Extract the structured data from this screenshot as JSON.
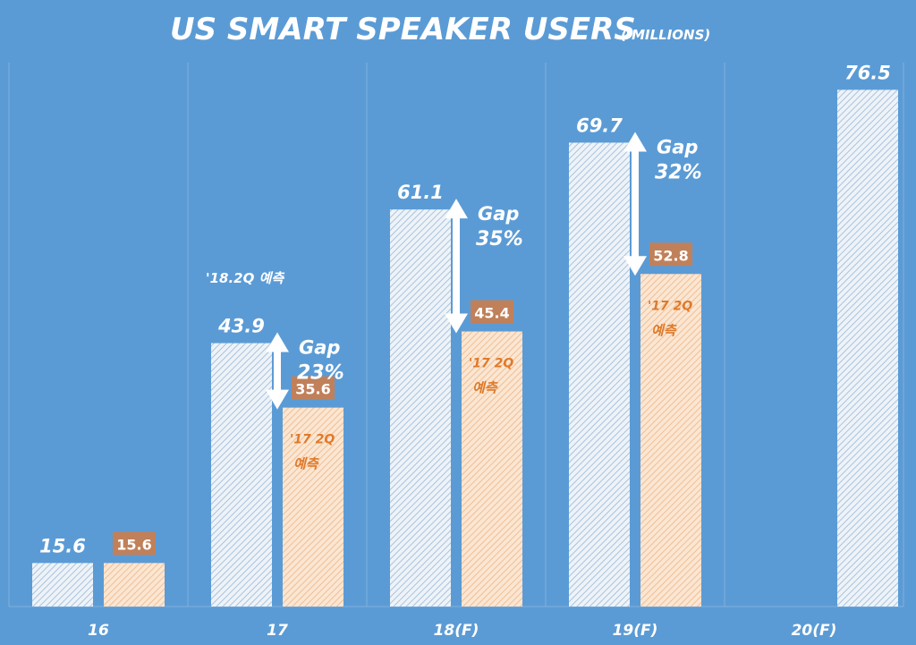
{
  "chart_data": {
    "type": "bar",
    "title": "US SMART SPEAKER USERS",
    "subtitle": "( MILLIONS)",
    "categories": [
      "16",
      "17",
      "18(F)",
      "19(F)",
      "20(F)"
    ],
    "ylim": [
      10,
      80
    ],
    "grid": "vertical category separators",
    "series": [
      {
        "values": [
          15.6,
          43.9,
          61.1,
          69.7,
          76.5
        ],
        "color": "#dfe9f3"
      },
      {
        "values": [
          15.6,
          35.6,
          45.4,
          52.8,
          null
        ],
        "color": "#f6d5b5",
        "label_box_color": "#c0805a"
      }
    ],
    "annotations": {
      "gaps": [
        null,
        "Gap 23%",
        "Gap 35%",
        "Gap 32%",
        null
      ],
      "gap_word": "Gap",
      "gap_pcts": [
        null,
        "23%",
        "35%",
        "32%",
        null
      ],
      "forecast_label": "'18.2Q 예측",
      "orange_note_line1": "'17 2Q",
      "orange_note_line2": "예측"
    },
    "colors": {
      "background": "#5b9bd5",
      "text": "#ffffff",
      "orange_text": "#e07a2a"
    }
  }
}
